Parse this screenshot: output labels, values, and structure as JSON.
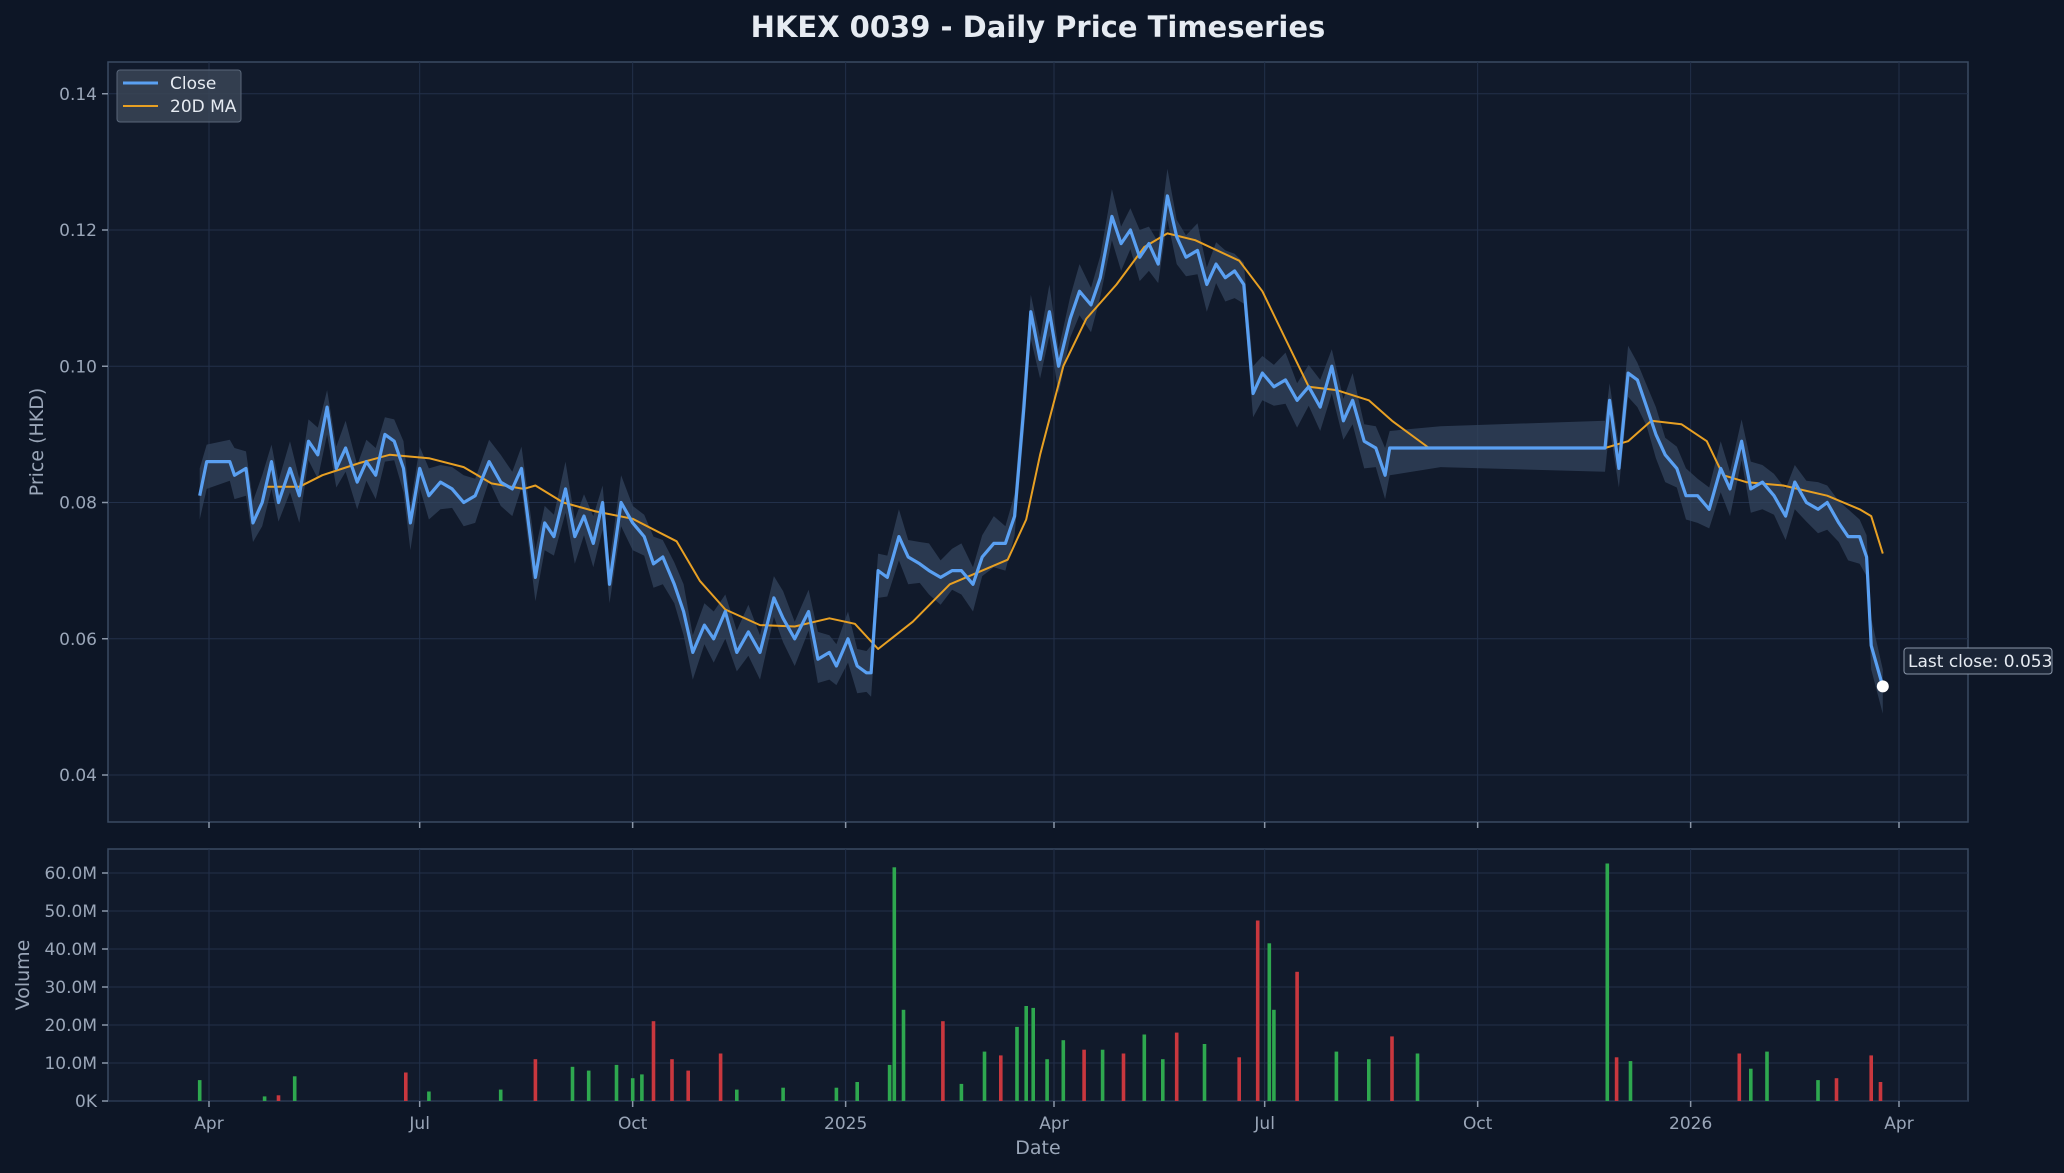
{
  "chart_data": {
    "type": "line",
    "title": "HKEX 0039 - Daily Price Timeseries",
    "xlabel": "Date",
    "price_panel": {
      "ylabel": "Price (HKD)",
      "ylim": [
        0.033,
        0.145
      ],
      "yticks": [
        "0.04",
        "0.06",
        "0.08",
        "0.10",
        "0.12",
        "0.14"
      ],
      "legend": {
        "position": "top-left",
        "entries": [
          "Close",
          "20D MA"
        ]
      },
      "annotation": "Last close: 0.053",
      "grid": true
    },
    "volume_panel": {
      "ylabel": "Volume",
      "ylim": [
        0,
        66
      ],
      "yticks": [
        "0K",
        "10.0M",
        "20.0M",
        "30.0M",
        "40.0M",
        "50.0M",
        "60.0M"
      ],
      "grid": true
    },
    "x_ticks": [
      "Apr",
      "Jul",
      "Oct",
      "2025",
      "Apr",
      "Jul",
      "Oct",
      "2026",
      "Apr"
    ],
    "colors": {
      "close": "#5aa0f2",
      "ma": "#e8a023",
      "band": "#33445e",
      "up": "#2ea84f",
      "down": "#c9373e",
      "background": "#0d1626",
      "panel": "#111a2b"
    },
    "close_series": [
      [
        "2024-03-28",
        0.081
      ],
      [
        "2024-03-31",
        0.086
      ],
      [
        "2024-04-10",
        0.086
      ],
      [
        "2024-04-12",
        0.084
      ],
      [
        "2024-04-17",
        0.085
      ],
      [
        "2024-04-20",
        0.077
      ],
      [
        "2024-04-24",
        0.08
      ],
      [
        "2024-04-28",
        0.086
      ],
      [
        "2024-05-01",
        0.08
      ],
      [
        "2024-05-06",
        0.085
      ],
      [
        "2024-05-10",
        0.081
      ],
      [
        "2024-05-14",
        0.089
      ],
      [
        "2024-05-18",
        0.087
      ],
      [
        "2024-05-22",
        0.094
      ],
      [
        "2024-05-26",
        0.085
      ],
      [
        "2024-05-30",
        0.088
      ],
      [
        "2024-06-04",
        0.083
      ],
      [
        "2024-06-08",
        0.086
      ],
      [
        "2024-06-12",
        0.084
      ],
      [
        "2024-06-16",
        0.09
      ],
      [
        "2024-06-20",
        0.089
      ],
      [
        "2024-06-24",
        0.085
      ],
      [
        "2024-06-27",
        0.077
      ],
      [
        "2024-07-01",
        0.085
      ],
      [
        "2024-07-05",
        0.081
      ],
      [
        "2024-07-10",
        0.083
      ],
      [
        "2024-07-15",
        0.082
      ],
      [
        "2024-07-20",
        0.08
      ],
      [
        "2024-07-25",
        0.081
      ],
      [
        "2024-07-31",
        0.086
      ],
      [
        "2024-08-05",
        0.083
      ],
      [
        "2024-08-10",
        0.082
      ],
      [
        "2024-08-14",
        0.085
      ],
      [
        "2024-08-20",
        0.069
      ],
      [
        "2024-08-24",
        0.077
      ],
      [
        "2024-08-28",
        0.075
      ],
      [
        "2024-09-02",
        0.082
      ],
      [
        "2024-09-06",
        0.075
      ],
      [
        "2024-09-10",
        0.078
      ],
      [
        "2024-09-14",
        0.074
      ],
      [
        "2024-09-18",
        0.08
      ],
      [
        "2024-09-21",
        0.068
      ],
      [
        "2024-09-26",
        0.08
      ],
      [
        "2024-10-01",
        0.077
      ],
      [
        "2024-10-06",
        0.075
      ],
      [
        "2024-10-10",
        0.071
      ],
      [
        "2024-10-14",
        0.072
      ],
      [
        "2024-10-19",
        0.068
      ],
      [
        "2024-10-23",
        0.064
      ],
      [
        "2024-10-27",
        0.058
      ],
      [
        "2024-11-01",
        0.062
      ],
      [
        "2024-11-05",
        0.06
      ],
      [
        "2024-11-10",
        0.064
      ],
      [
        "2024-11-15",
        0.058
      ],
      [
        "2024-11-20",
        0.061
      ],
      [
        "2024-11-25",
        0.058
      ],
      [
        "2024-12-01",
        0.066
      ],
      [
        "2024-12-05",
        0.063
      ],
      [
        "2024-12-10",
        0.06
      ],
      [
        "2024-12-16",
        0.064
      ],
      [
        "2024-12-20",
        0.057
      ],
      [
        "2024-12-25",
        0.058
      ],
      [
        "2024-12-28",
        0.056
      ],
      [
        "2025-01-02",
        0.06
      ],
      [
        "2025-01-06",
        0.056
      ],
      [
        "2025-01-10",
        0.055
      ],
      [
        "2025-01-12",
        0.055
      ],
      [
        "2025-01-15",
        0.07
      ],
      [
        "2025-01-19",
        0.069
      ],
      [
        "2025-01-24",
        0.075
      ],
      [
        "2025-01-28",
        0.072
      ],
      [
        "2025-02-02",
        0.071
      ],
      [
        "2025-02-06",
        0.07
      ],
      [
        "2025-02-11",
        0.069
      ],
      [
        "2025-02-16",
        0.07
      ],
      [
        "2025-02-20",
        0.07
      ],
      [
        "2025-02-25",
        0.068
      ],
      [
        "2025-03-01",
        0.072
      ],
      [
        "2025-03-06",
        0.074
      ],
      [
        "2025-03-11",
        0.074
      ],
      [
        "2025-03-15",
        0.078
      ],
      [
        "2025-03-19",
        0.094
      ],
      [
        "2025-03-22",
        0.108
      ],
      [
        "2025-03-26",
        0.101
      ],
      [
        "2025-03-30",
        0.108
      ],
      [
        "2025-04-03",
        0.1
      ],
      [
        "2025-04-08",
        0.107
      ],
      [
        "2025-04-12",
        0.111
      ],
      [
        "2025-04-17",
        0.109
      ],
      [
        "2025-04-21",
        0.113
      ],
      [
        "2025-04-26",
        0.122
      ],
      [
        "2025-04-30",
        0.118
      ],
      [
        "2025-05-04",
        0.12
      ],
      [
        "2025-05-08",
        0.116
      ],
      [
        "2025-05-12",
        0.118
      ],
      [
        "2025-05-16",
        0.115
      ],
      [
        "2025-05-20",
        0.125
      ],
      [
        "2025-05-24",
        0.119
      ],
      [
        "2025-05-28",
        0.116
      ],
      [
        "2025-06-02",
        0.117
      ],
      [
        "2025-06-06",
        0.112
      ],
      [
        "2025-06-10",
        0.115
      ],
      [
        "2025-06-14",
        0.113
      ],
      [
        "2025-06-18",
        0.114
      ],
      [
        "2025-06-22",
        0.112
      ],
      [
        "2025-06-26",
        0.096
      ],
      [
        "2025-06-30",
        0.099
      ],
      [
        "2025-07-05",
        0.097
      ],
      [
        "2025-07-10",
        0.098
      ],
      [
        "2025-07-15",
        0.095
      ],
      [
        "2025-07-20",
        0.097
      ],
      [
        "2025-07-25",
        0.094
      ],
      [
        "2025-07-30",
        0.1
      ],
      [
        "2025-08-04",
        0.092
      ],
      [
        "2025-08-08",
        0.095
      ],
      [
        "2025-08-13",
        0.089
      ],
      [
        "2025-08-18",
        0.088
      ],
      [
        "2025-08-22",
        0.084
      ],
      [
        "2025-08-24",
        0.088
      ],
      [
        "2025-09-15",
        0.088
      ],
      [
        "2025-11-25",
        0.088
      ],
      [
        "2025-11-27",
        0.095
      ],
      [
        "2025-12-01",
        0.085
      ],
      [
        "2025-12-05",
        0.099
      ],
      [
        "2025-12-09",
        0.098
      ],
      [
        "2025-12-13",
        0.094
      ],
      [
        "2025-12-17",
        0.09
      ],
      [
        "2025-12-21",
        0.087
      ],
      [
        "2025-12-26",
        0.085
      ],
      [
        "2025-12-30",
        0.081
      ],
      [
        "2026-01-04",
        0.081
      ],
      [
        "2026-01-09",
        0.079
      ],
      [
        "2026-01-14",
        0.085
      ],
      [
        "2026-01-18",
        0.082
      ],
      [
        "2026-01-23",
        0.089
      ],
      [
        "2026-01-27",
        0.082
      ],
      [
        "2026-02-01",
        0.083
      ],
      [
        "2026-02-06",
        0.081
      ],
      [
        "2026-02-11",
        0.078
      ],
      [
        "2026-02-15",
        0.083
      ],
      [
        "2026-02-20",
        0.08
      ],
      [
        "2026-02-25",
        0.079
      ],
      [
        "2026-03-01",
        0.08
      ],
      [
        "2026-03-06",
        0.077
      ],
      [
        "2026-03-10",
        0.075
      ],
      [
        "2026-03-15",
        0.075
      ],
      [
        "2026-03-18",
        0.072
      ],
      [
        "2026-03-20",
        0.059
      ],
      [
        "2026-03-25",
        0.053
      ]
    ],
    "ma20_series": [
      [
        "2024-04-25",
        0.0823
      ],
      [
        "2024-05-10",
        0.0823
      ],
      [
        "2024-05-20",
        0.084
      ],
      [
        "2024-06-05",
        0.0858
      ],
      [
        "2024-06-18",
        0.087
      ],
      [
        "2024-07-05",
        0.0865
      ],
      [
        "2024-07-20",
        0.0852
      ],
      [
        "2024-08-01",
        0.0828
      ],
      [
        "2024-08-15",
        0.082
      ],
      [
        "2024-08-20",
        0.0825
      ],
      [
        "2024-09-01",
        0.08
      ],
      [
        "2024-09-15",
        0.0787
      ],
      [
        "2024-10-01",
        0.0776
      ],
      [
        "2024-10-20",
        0.0743
      ],
      [
        "2024-10-30",
        0.0685
      ],
      [
        "2024-11-10",
        0.0643
      ],
      [
        "2024-11-25",
        0.062
      ],
      [
        "2024-12-10",
        0.0618
      ],
      [
        "2024-12-25",
        0.063
      ],
      [
        "2025-01-05",
        0.0622
      ],
      [
        "2025-01-15",
        0.0585
      ],
      [
        "2025-01-30",
        0.0625
      ],
      [
        "2025-02-15",
        0.068
      ],
      [
        "2025-03-01",
        0.07
      ],
      [
        "2025-03-12",
        0.0716
      ],
      [
        "2025-03-20",
        0.0775
      ],
      [
        "2025-03-26",
        0.087
      ],
      [
        "2025-04-05",
        0.1
      ],
      [
        "2025-04-15",
        0.107
      ],
      [
        "2025-04-28",
        0.112
      ],
      [
        "2025-05-10",
        0.1175
      ],
      [
        "2025-05-20",
        0.1195
      ],
      [
        "2025-06-01",
        0.1185
      ],
      [
        "2025-06-20",
        0.1155
      ],
      [
        "2025-06-30",
        0.111
      ],
      [
        "2025-07-10",
        0.104
      ],
      [
        "2025-07-20",
        0.097
      ],
      [
        "2025-08-01",
        0.0965
      ],
      [
        "2025-08-15",
        0.095
      ],
      [
        "2025-08-25",
        0.092
      ],
      [
        "2025-09-10",
        0.088
      ],
      [
        "2025-09-20",
        0.088
      ],
      [
        "2025-11-25",
        0.088
      ],
      [
        "2025-12-05",
        0.089
      ],
      [
        "2025-12-15",
        0.092
      ],
      [
        "2025-12-28",
        0.0915
      ],
      [
        "2026-01-08",
        0.089
      ],
      [
        "2026-01-15",
        0.084
      ],
      [
        "2026-01-25",
        0.083
      ],
      [
        "2026-02-10",
        0.0825
      ],
      [
        "2026-03-01",
        0.081
      ],
      [
        "2026-03-15",
        0.079
      ],
      [
        "2026-03-20",
        0.078
      ],
      [
        "2026-03-25",
        0.0725
      ]
    ],
    "volume_bars": [
      [
        "2024-03-28",
        5.5,
        "up"
      ],
      [
        "2024-04-25",
        1.2,
        "up"
      ],
      [
        "2024-05-01",
        1.5,
        "down"
      ],
      [
        "2024-05-08",
        6.5,
        "up"
      ],
      [
        "2024-06-25",
        7.5,
        "down"
      ],
      [
        "2024-07-05",
        2.5,
        "up"
      ],
      [
        "2024-08-05",
        3.0,
        "up"
      ],
      [
        "2024-08-20",
        11.0,
        "down"
      ],
      [
        "2024-09-05",
        9.0,
        "up"
      ],
      [
        "2024-09-12",
        8.0,
        "up"
      ],
      [
        "2024-09-24",
        9.5,
        "up"
      ],
      [
        "2024-10-01",
        6.0,
        "up"
      ],
      [
        "2024-10-05",
        7.0,
        "up"
      ],
      [
        "2024-10-10",
        21.0,
        "down"
      ],
      [
        "2024-10-18",
        11.0,
        "down"
      ],
      [
        "2024-10-25",
        8.0,
        "down"
      ],
      [
        "2024-11-08",
        12.5,
        "down"
      ],
      [
        "2024-11-15",
        3.0,
        "up"
      ],
      [
        "2024-12-05",
        3.5,
        "up"
      ],
      [
        "2024-12-28",
        3.5,
        "up"
      ],
      [
        "2025-01-06",
        5.0,
        "up"
      ],
      [
        "2025-01-20",
        9.5,
        "up"
      ],
      [
        "2025-01-22",
        61.5,
        "up"
      ],
      [
        "2025-01-26",
        24.0,
        "up"
      ],
      [
        "2025-02-12",
        21.0,
        "down"
      ],
      [
        "2025-02-20",
        4.5,
        "up"
      ],
      [
        "2025-03-02",
        13.0,
        "up"
      ],
      [
        "2025-03-09",
        12.0,
        "down"
      ],
      [
        "2025-03-16",
        19.5,
        "up"
      ],
      [
        "2025-03-20",
        25.0,
        "up"
      ],
      [
        "2025-03-23",
        24.5,
        "up"
      ],
      [
        "2025-03-29",
        11.0,
        "up"
      ],
      [
        "2025-04-05",
        16.0,
        "up"
      ],
      [
        "2025-04-14",
        13.5,
        "down"
      ],
      [
        "2025-04-22",
        13.5,
        "up"
      ],
      [
        "2025-05-01",
        12.5,
        "down"
      ],
      [
        "2025-05-10",
        17.5,
        "up"
      ],
      [
        "2025-05-18",
        11.0,
        "up"
      ],
      [
        "2025-05-24",
        18.0,
        "down"
      ],
      [
        "2025-06-05",
        15.0,
        "up"
      ],
      [
        "2025-06-20",
        11.5,
        "down"
      ],
      [
        "2025-06-28",
        47.5,
        "down"
      ],
      [
        "2025-07-03",
        41.5,
        "up"
      ],
      [
        "2025-07-05",
        24.0,
        "up"
      ],
      [
        "2025-07-15",
        34.0,
        "down"
      ],
      [
        "2025-08-01",
        13.0,
        "up"
      ],
      [
        "2025-08-15",
        11.0,
        "up"
      ],
      [
        "2025-08-25",
        17.0,
        "down"
      ],
      [
        "2025-09-05",
        12.5,
        "up"
      ],
      [
        "2025-11-26",
        62.5,
        "up"
      ],
      [
        "2025-11-30",
        11.5,
        "down"
      ],
      [
        "2025-12-06",
        10.5,
        "up"
      ],
      [
        "2026-01-22",
        12.5,
        "down"
      ],
      [
        "2026-01-27",
        8.5,
        "up"
      ],
      [
        "2026-02-03",
        13.0,
        "up"
      ],
      [
        "2026-02-25",
        5.5,
        "up"
      ],
      [
        "2026-03-05",
        6.0,
        "down"
      ],
      [
        "2026-03-20",
        12.0,
        "down"
      ],
      [
        "2026-03-24",
        5.0,
        "down"
      ]
    ]
  }
}
